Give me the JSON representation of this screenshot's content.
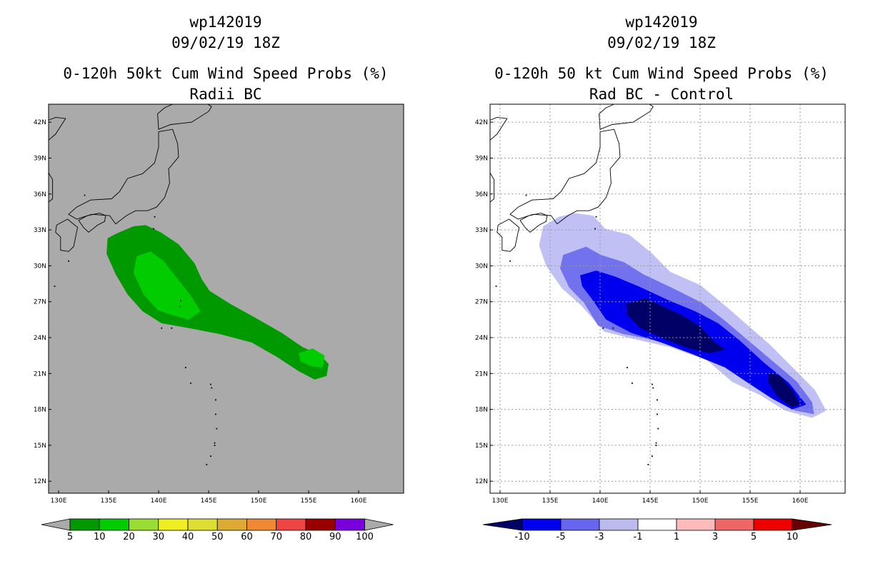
{
  "chart_data": [
    {
      "type": "heatmap",
      "title_lines": [
        "wp142019",
        "09/02/19 18Z",
        "0-120h 50kt Cum Wind Speed Probs (%)",
        "Radii BC"
      ],
      "background_color": "#aaaaaa",
      "x_ticks": [
        "130E",
        "135E",
        "140E",
        "145E",
        "150E",
        "155E",
        "160E"
      ],
      "y_ticks": [
        "42N",
        "39N",
        "36N",
        "33N",
        "30N",
        "27N",
        "24N",
        "21N",
        "18N",
        "15N",
        "12N"
      ],
      "xlim_deg": [
        129,
        164.5
      ],
      "ylim_deg": [
        11,
        43.5
      ],
      "grid": false,
      "colorbar": {
        "labels": [
          "5",
          "10",
          "20",
          "30",
          "40",
          "50",
          "60",
          "70",
          "80",
          "90",
          "100"
        ],
        "colors": [
          "#009900",
          "#00cc00",
          "#99dd33",
          "#eeee22",
          "#dddd33",
          "#ddaa33",
          "#ee8833",
          "#ee4444",
          "#990000",
          "#7700dd"
        ],
        "extend_colors": [
          "#aaaaaa",
          "#aaaaaa"
        ]
      },
      "contours": [
        {
          "level": "5-10",
          "color": "#009900",
          "polygon": [
            [
              134.9,
              32.3
            ],
            [
              135.8,
              32.7
            ],
            [
              137.5,
              33.3
            ],
            [
              138.7,
              33.4
            ],
            [
              140.2,
              32.8
            ],
            [
              142.0,
              31.8
            ],
            [
              143.6,
              30.2
            ],
            [
              144.3,
              28.9
            ],
            [
              145.1,
              27.9
            ],
            [
              147.2,
              26.8
            ],
            [
              149.8,
              25.6
            ],
            [
              152.3,
              24.4
            ],
            [
              154.4,
              23.2
            ],
            [
              156.1,
              22.6
            ],
            [
              157.0,
              21.8
            ],
            [
              156.8,
              20.8
            ],
            [
              155.6,
              20.5
            ],
            [
              154.0,
              21.2
            ],
            [
              151.8,
              22.4
            ],
            [
              149.3,
              23.6
            ],
            [
              146.1,
              24.3
            ],
            [
              143.0,
              24.8
            ],
            [
              140.3,
              25.2
            ],
            [
              138.4,
              26.2
            ],
            [
              136.9,
              27.6
            ],
            [
              135.7,
              29.3
            ],
            [
              134.8,
              31.0
            ]
          ]
        },
        {
          "level": "10-20",
          "color": "#00cc00",
          "polygon": [
            [
              137.8,
              30.8
            ],
            [
              139.2,
              31.2
            ],
            [
              140.5,
              30.4
            ],
            [
              141.9,
              28.9
            ],
            [
              143.3,
              27.4
            ],
            [
              144.2,
              26.2
            ],
            [
              143.0,
              25.5
            ],
            [
              141.3,
              25.9
            ],
            [
              139.9,
              26.3
            ],
            [
              138.5,
              27.6
            ],
            [
              137.5,
              29.4
            ]
          ]
        },
        {
          "level": "10-20",
          "color": "#00cc00",
          "polygon": [
            [
              154.0,
              22.7
            ],
            [
              155.4,
              23.1
            ],
            [
              156.6,
              22.5
            ],
            [
              156.4,
              21.5
            ],
            [
              155.3,
              21.6
            ],
            [
              154.2,
              22.0
            ]
          ]
        }
      ]
    },
    {
      "type": "heatmap",
      "title_lines": [
        "wp142019",
        "09/02/19 18Z",
        "0-120h 50 kt Cum Wind Speed Probs (%)",
        "Rad BC - Control"
      ],
      "background_color": "#ffffff",
      "x_ticks": [
        "130E",
        "135E",
        "140E",
        "145E",
        "150E",
        "155E",
        "160E"
      ],
      "y_ticks": [
        "42N",
        "39N",
        "36N",
        "33N",
        "30N",
        "27N",
        "24N",
        "21N",
        "18N",
        "15N",
        "12N"
      ],
      "xlim_deg": [
        129,
        164.5
      ],
      "ylim_deg": [
        11,
        43.5
      ],
      "grid": true,
      "colorbar": {
        "labels": [
          "-10",
          "-5",
          "-3",
          "-1",
          "1",
          "3",
          "5",
          "10"
        ],
        "colors": [
          "#0000ee",
          "#6666ee",
          "#bbbbee",
          "#ffffff",
          "#ffbbbb",
          "#ee6666",
          "#ee0000"
        ],
        "extend_colors": [
          "#000066",
          "#660000"
        ]
      },
      "contours": [
        {
          "level": "-3 to -1",
          "color": "#c0c0f4",
          "polygon": [
            [
              134.3,
              33.3
            ],
            [
              135.9,
              34.1
            ],
            [
              137.4,
              34.4
            ],
            [
              139.3,
              34.2
            ],
            [
              140.5,
              33.1
            ],
            [
              142.9,
              32.6
            ],
            [
              145.1,
              31.1
            ],
            [
              147.0,
              29.5
            ],
            [
              150.0,
              28.4
            ],
            [
              152.6,
              26.6
            ],
            [
              154.8,
              25.0
            ],
            [
              157.0,
              23.4
            ],
            [
              159.5,
              21.3
            ],
            [
              161.5,
              19.6
            ],
            [
              162.6,
              17.9
            ],
            [
              161.2,
              17.3
            ],
            [
              158.5,
              17.9
            ],
            [
              156.0,
              19.2
            ],
            [
              153.2,
              20.3
            ],
            [
              150.7,
              22.1
            ],
            [
              147.0,
              23.2
            ],
            [
              143.3,
              23.9
            ],
            [
              140.4,
              24.5
            ],
            [
              138.1,
              26.7
            ],
            [
              136.2,
              28.1
            ],
            [
              134.6,
              30.0
            ],
            [
              133.9,
              31.7
            ]
          ]
        },
        {
          "level": "-5 to -3",
          "color": "#7272ee",
          "polygon": [
            [
              136.3,
              30.9
            ],
            [
              138.6,
              31.6
            ],
            [
              140.1,
              30.9
            ],
            [
              142.4,
              30.3
            ],
            [
              144.3,
              29.3
            ],
            [
              147.1,
              28.2
            ],
            [
              150.2,
              26.9
            ],
            [
              152.5,
              25.4
            ],
            [
              154.9,
              23.7
            ],
            [
              157.3,
              22.0
            ],
            [
              159.7,
              20.3
            ],
            [
              161.2,
              18.6
            ],
            [
              161.4,
              17.6
            ],
            [
              159.5,
              17.9
            ],
            [
              157.5,
              18.8
            ],
            [
              155.0,
              20.3
            ],
            [
              152.4,
              21.6
            ],
            [
              149.5,
              22.7
            ],
            [
              146.0,
              23.7
            ],
            [
              142.3,
              24.3
            ],
            [
              139.8,
              25.0
            ],
            [
              138.4,
              26.9
            ],
            [
              136.9,
              28.2
            ],
            [
              136.0,
              29.8
            ]
          ]
        },
        {
          "level": "-10 to -5",
          "color": "#0000ee",
          "polygon": [
            [
              138.0,
              29.2
            ],
            [
              139.6,
              29.6
            ],
            [
              141.5,
              29.1
            ],
            [
              143.8,
              28.3
            ],
            [
              146.9,
              27.1
            ],
            [
              149.5,
              26.2
            ],
            [
              151.8,
              25.2
            ],
            [
              153.9,
              23.8
            ],
            [
              156.4,
              21.9
            ],
            [
              158.9,
              20.2
            ],
            [
              160.6,
              18.4
            ],
            [
              159.2,
              18.0
            ],
            [
              157.2,
              18.9
            ],
            [
              155.0,
              20.1
            ],
            [
              152.5,
              21.5
            ],
            [
              149.3,
              22.6
            ],
            [
              146.1,
              23.6
            ],
            [
              143.1,
              24.4
            ],
            [
              140.6,
              25.5
            ],
            [
              139.2,
              27.2
            ],
            [
              138.2,
              28.3
            ]
          ]
        },
        {
          "level": "< -10",
          "color": "#000066",
          "polygon": [
            [
              142.6,
              26.8
            ],
            [
              144.5,
              27.3
            ],
            [
              146.3,
              26.6
            ],
            [
              148.1,
              25.9
            ],
            [
              149.9,
              25.0
            ],
            [
              151.5,
              23.6
            ],
            [
              152.5,
              23.0
            ],
            [
              151.0,
              22.7
            ],
            [
              148.9,
              23.1
            ],
            [
              146.4,
              23.9
            ],
            [
              144.0,
              24.8
            ],
            [
              142.7,
              25.9
            ]
          ]
        },
        {
          "level": "< -10",
          "color": "#000066",
          "polygon": [
            [
              156.9,
              21.1
            ],
            [
              158.0,
              20.8
            ],
            [
              159.3,
              19.5
            ],
            [
              160.0,
              18.4
            ],
            [
              159.1,
              18.2
            ],
            [
              157.7,
              19.1
            ],
            [
              156.8,
              20.3
            ]
          ]
        }
      ]
    }
  ]
}
